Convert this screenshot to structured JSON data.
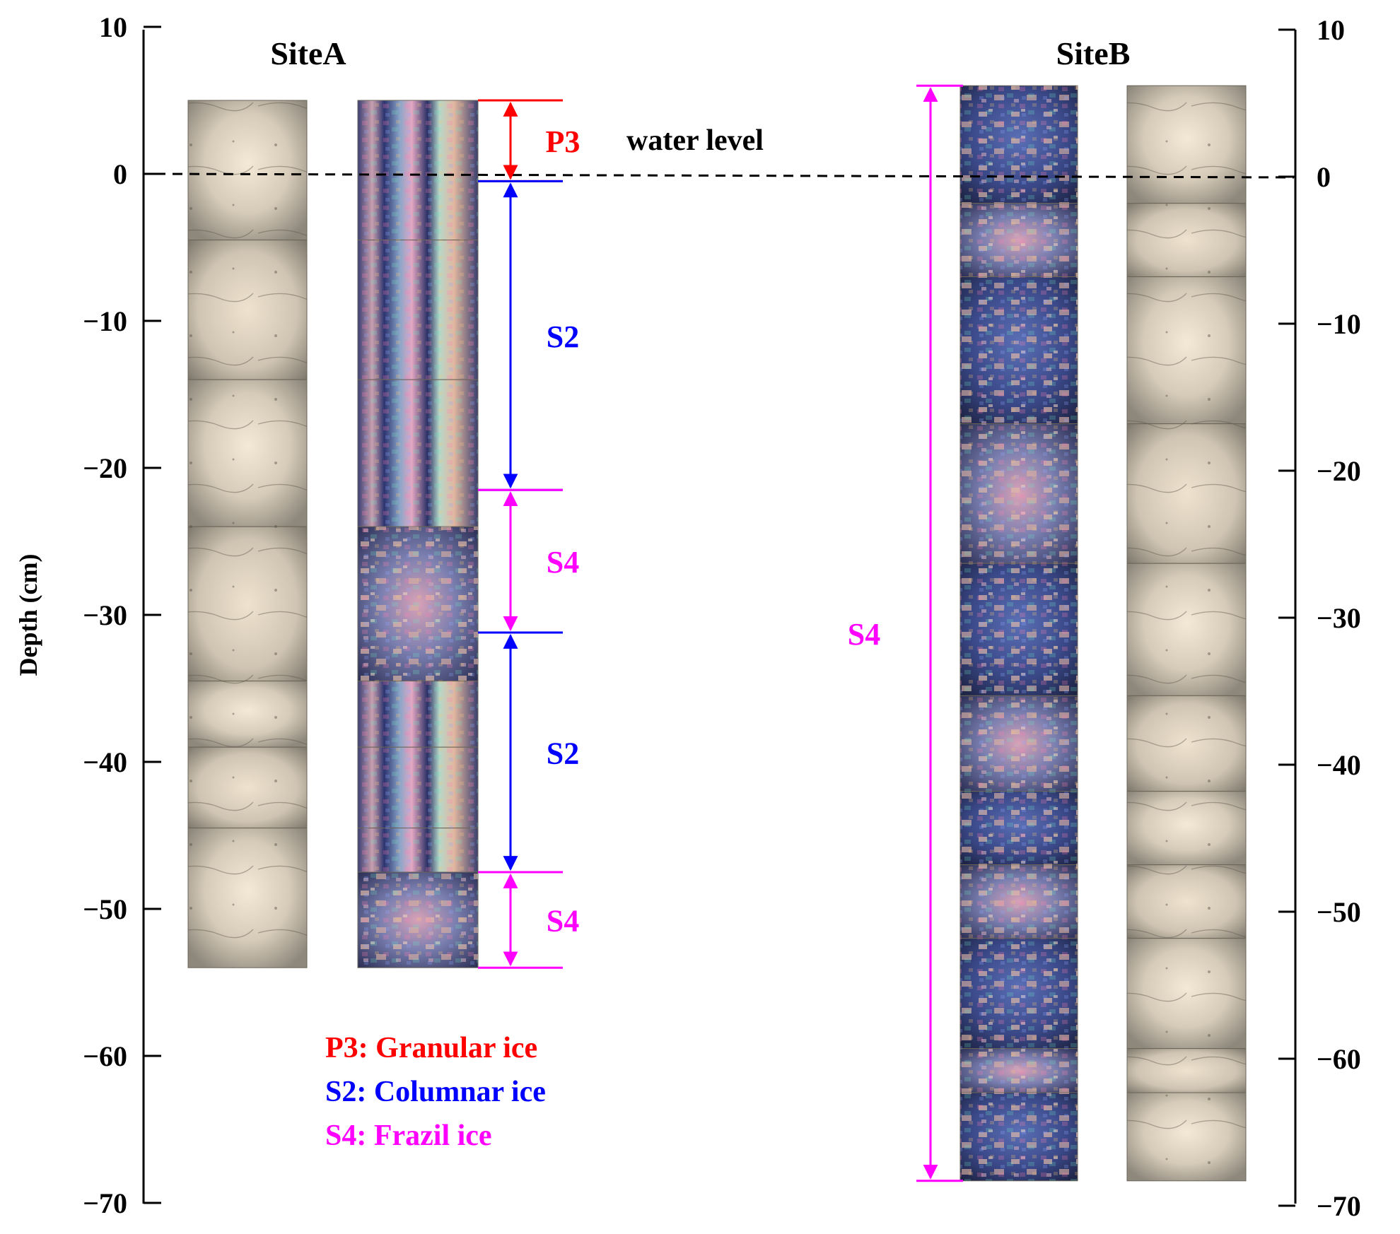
{
  "depth_axis": {
    "label": "Depth (cm)",
    "min": -70,
    "max": 10,
    "ticks": [
      "10",
      "0",
      "−10",
      "−20",
      "−30",
      "−40",
      "−50",
      "−60",
      "−70"
    ],
    "tick_values": [
      10,
      0,
      -10,
      -20,
      -30,
      -40,
      -50,
      -60,
      -70
    ]
  },
  "site_a": {
    "title": "SiteA"
  },
  "site_b": {
    "title": "SiteB"
  },
  "water_level": {
    "label": "water level",
    "depth": 0
  },
  "site_a_layers": [
    {
      "label": "P3",
      "top": 5,
      "bottom": -0.5,
      "color": "#ff0000"
    },
    {
      "label": "S2",
      "top": -0.5,
      "bottom": -21.5,
      "color": "#0000ff"
    },
    {
      "label": "S4",
      "top": -21.5,
      "bottom": -31.2,
      "color": "#ff00ff"
    },
    {
      "label": "S2",
      "top": -31.2,
      "bottom": -47.5,
      "color": "#0000ff"
    },
    {
      "label": "S4",
      "top": -47.5,
      "bottom": -54,
      "color": "#ff00ff"
    }
  ],
  "site_b_layers": [
    {
      "label": "S4",
      "top": 6,
      "bottom": -68.5,
      "color": "#ff00ff"
    }
  ],
  "legend": [
    {
      "text": "P3: Granular ice",
      "color": "#ff0000"
    },
    {
      "text": "S2: Columnar ice",
      "color": "#0000ff"
    },
    {
      "text": "S4: Frazil ice",
      "color": "#ff00ff"
    }
  ],
  "core_styles": {
    "plain": "plain-core-photo",
    "polarized": "polarized-core-photo"
  }
}
